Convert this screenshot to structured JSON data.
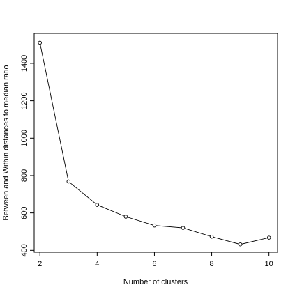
{
  "chart_data": {
    "type": "line",
    "xlabel": "Number of clusters",
    "ylabel": "Between and Within distances to median ratio",
    "x": [
      2,
      3,
      4,
      5,
      6,
      7,
      8,
      9,
      10
    ],
    "series": [
      {
        "values": [
          1510,
          768,
          643,
          580,
          533,
          520,
          473,
          432,
          468
        ]
      }
    ],
    "xlim": [
      1.8,
      10.3
    ],
    "ylim": [
      390,
      1560
    ],
    "xticks": [
      2,
      4,
      6,
      8,
      10
    ],
    "yticks": [
      400,
      600,
      800,
      1000,
      1200,
      1400
    ],
    "marker": "open-circle",
    "grid": false,
    "legend": "none",
    "colors": {
      "line": "#000000",
      "axis": "#000000",
      "background": "#ffffff"
    }
  }
}
